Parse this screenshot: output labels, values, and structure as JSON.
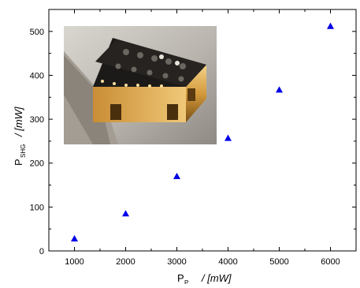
{
  "chart_data": {
    "type": "scatter",
    "x": [
      1000,
      2000,
      3000,
      4000,
      5000,
      6000
    ],
    "y": [
      28,
      85,
      170,
      257,
      367,
      512
    ],
    "xlim": [
      500,
      6500
    ],
    "ylim": [
      0,
      550
    ],
    "xticks": [
      1000,
      2000,
      3000,
      4000,
      5000,
      6000
    ],
    "yticks": [
      0,
      100,
      200,
      300,
      400,
      500
    ],
    "xlabel": {
      "main": "P",
      "sub": "P",
      "unit": "/ [mW]"
    },
    "ylabel": {
      "main": "P",
      "sub": "SHG",
      "unit": "/ [mW]"
    },
    "marker": "triangle",
    "marker_color": "#0000e6",
    "grid": false,
    "inset": "photo of a gold-plated, black-topped nonlinear crystal oven assembly"
  }
}
